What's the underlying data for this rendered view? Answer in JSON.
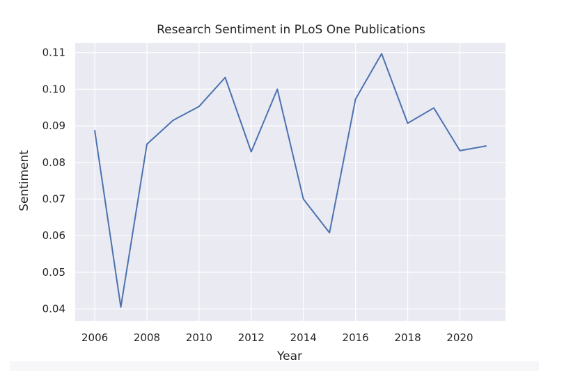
{
  "chart_data": {
    "type": "line",
    "title": "Research Sentiment in PLoS One Publications",
    "xlabel": "Year",
    "ylabel": "Sentiment",
    "xlim": [
      2005.25,
      2021.75
    ],
    "ylim": [
      0.0367,
      0.1126
    ],
    "x_ticks": [
      2006,
      2008,
      2010,
      2012,
      2014,
      2016,
      2018,
      2020
    ],
    "x_tick_labels": [
      "2006",
      "2008",
      "2010",
      "2012",
      "2014",
      "2016",
      "2018",
      "2020"
    ],
    "y_ticks": [
      0.04,
      0.05,
      0.06,
      0.07,
      0.08,
      0.09,
      0.1,
      0.11
    ],
    "y_tick_labels": [
      "0.04",
      "0.05",
      "0.06",
      "0.07",
      "0.08",
      "0.09",
      "0.10",
      "0.11"
    ],
    "grid": true,
    "legend": "none",
    "series": [
      {
        "x": [
          2006,
          2007,
          2008,
          2009,
          2010,
          2011,
          2012,
          2013,
          2014,
          2015,
          2016,
          2017,
          2018,
          2019,
          2020,
          2021
        ],
        "values": [
          0.0887,
          0.0405,
          0.085,
          0.0915,
          0.0953,
          0.1032,
          0.0829,
          0.1,
          0.07,
          0.0608,
          0.0973,
          0.1097,
          0.0907,
          0.0949,
          0.0832,
          0.0845
        ],
        "color": "#4c72b0"
      }
    ],
    "style": {
      "background": "#eaeaf2",
      "grid_color": "#ffffff",
      "text_color": "#262626"
    }
  }
}
